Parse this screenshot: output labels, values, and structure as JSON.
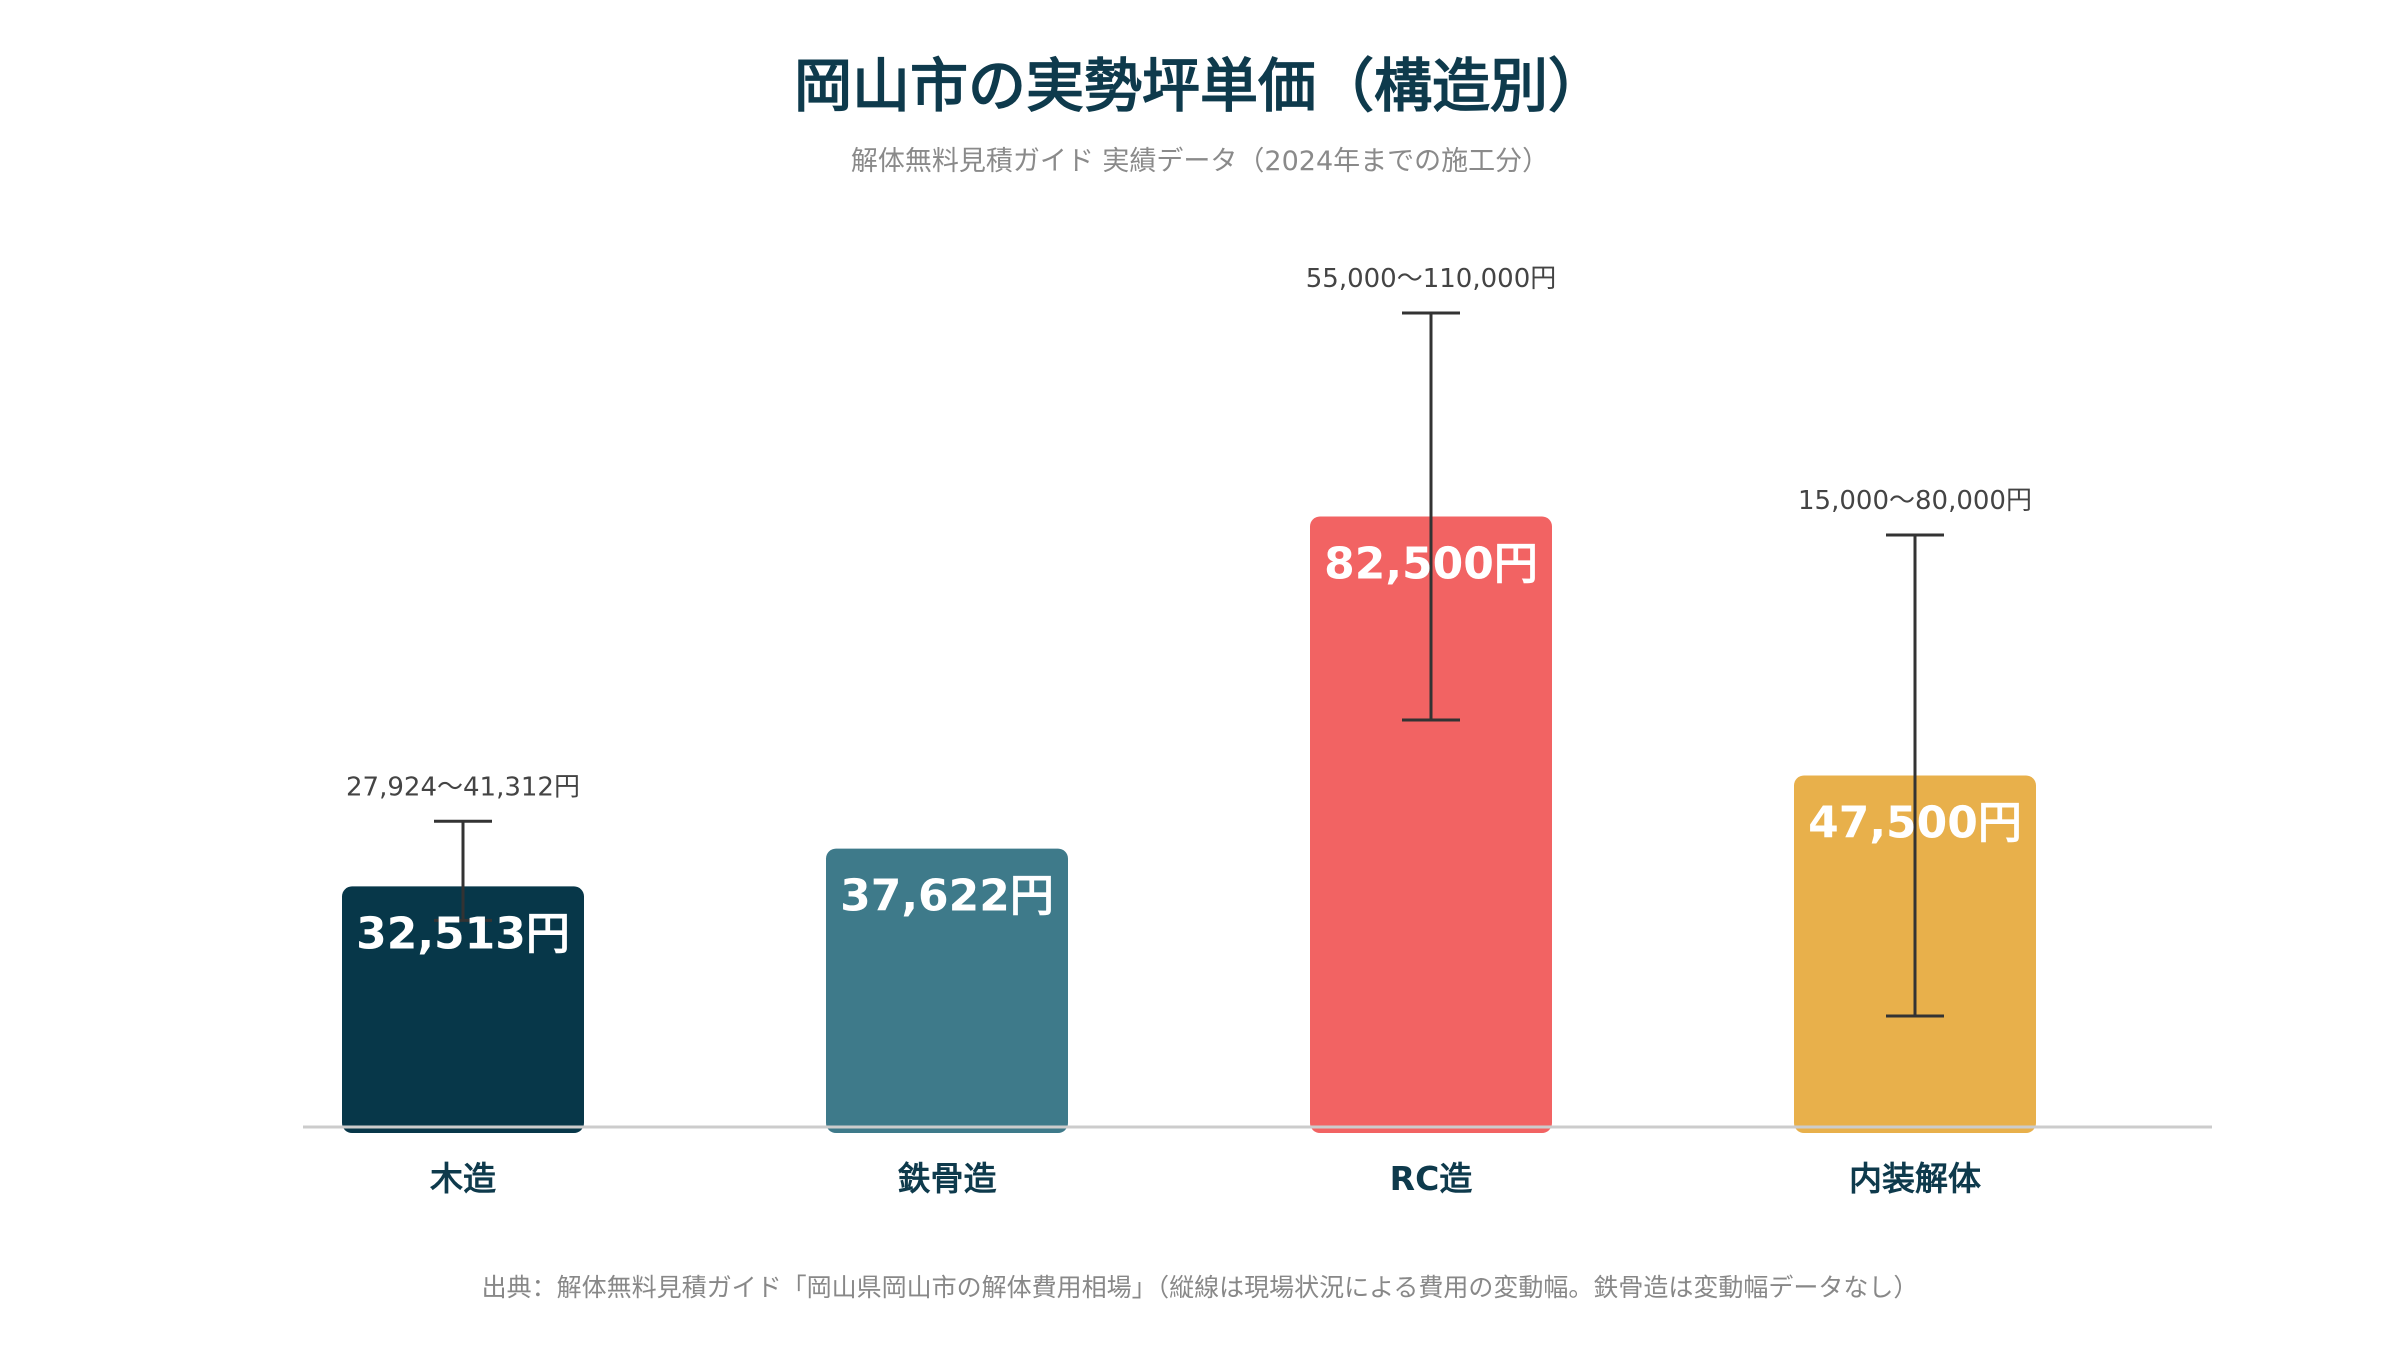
{
  "colors": {
    "title": "#0e3a4c",
    "subtitle": "#8a8a8a",
    "range_text": "#444444",
    "value_text": "#ffffff",
    "category_text": "#0e3a4c",
    "note_text": "#888888",
    "axis": "#cccccc",
    "error_bar": "#333333"
  },
  "chart_data": {
    "type": "bar",
    "title": "岡山市の実勢坪単価（構造別）",
    "subtitle": "解体無料見積ガイド 実績データ（2024年までの施工分）",
    "xlabel": "",
    "ylabel": "",
    "unit": "円",
    "ylim": [
      0,
      120000
    ],
    "grid": false,
    "categories": [
      "木造",
      "鉄骨造",
      "RC造",
      "内装解体"
    ],
    "values": [
      32513,
      37622,
      82500,
      47500
    ],
    "value_labels": [
      "32,513円",
      "37,622円",
      "82,500円",
      "47,500円"
    ],
    "ranges": [
      [
        27924,
        41312
      ],
      null,
      [
        55000,
        110000
      ],
      [
        15000,
        80000
      ]
    ],
    "range_labels": [
      "27,924〜41,312円",
      "",
      "55,000〜110,000円",
      "15,000〜80,000円"
    ],
    "bar_colors": [
      "#073749",
      "#3e7a8a",
      "#f26363",
      "#e8b04b"
    ],
    "source_note": "出典：解体無料見積ガイド「岡山県岡山市の解体費用相場」（縦線は現場状況による費用の変動幅。鉄骨造は変動幅データなし）"
  }
}
